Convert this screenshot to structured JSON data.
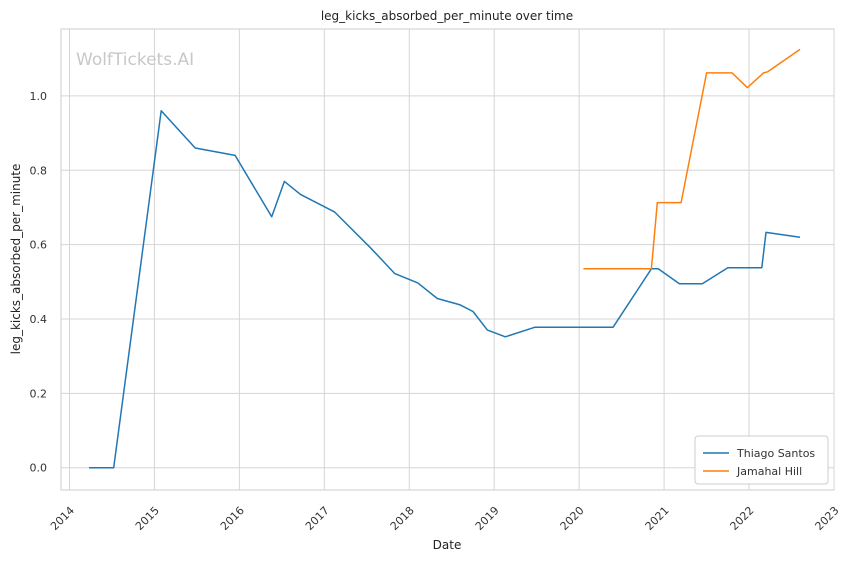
{
  "chart_data": {
    "type": "line",
    "title": "leg_kicks_absorbed_per_minute over time",
    "xlabel": "Date",
    "ylabel": "leg_kicks_absorbed_per_minute",
    "watermark": "WolfTickets.AI",
    "xlim": [
      2013.9,
      2023.0
    ],
    "ylim": [
      -0.06,
      1.18
    ],
    "x_ticks": [
      2014,
      2015,
      2016,
      2017,
      2018,
      2019,
      2020,
      2021,
      2022,
      2023
    ],
    "x_tick_labels": [
      "2014",
      "2015",
      "2016",
      "2017",
      "2018",
      "2019",
      "2020",
      "2021",
      "2022",
      "2023"
    ],
    "y_ticks": [
      0.0,
      0.2,
      0.4,
      0.6,
      0.8,
      1.0
    ],
    "y_tick_labels": [
      "0.0",
      "0.2",
      "0.4",
      "0.6",
      "0.8",
      "1.0"
    ],
    "grid": true,
    "legend_position": "bottom-right",
    "series": [
      {
        "name": "Thiago Santos",
        "color": "#1f77b4",
        "points": [
          [
            2014.23,
            0.0
          ],
          [
            2014.52,
            0.0
          ],
          [
            2015.08,
            0.96
          ],
          [
            2015.48,
            0.86
          ],
          [
            2015.95,
            0.84
          ],
          [
            2016.38,
            0.675
          ],
          [
            2016.53,
            0.77
          ],
          [
            2016.72,
            0.735
          ],
          [
            2017.12,
            0.688
          ],
          [
            2017.55,
            0.59
          ],
          [
            2017.83,
            0.522
          ],
          [
            2018.1,
            0.497
          ],
          [
            2018.33,
            0.455
          ],
          [
            2018.6,
            0.438
          ],
          [
            2018.75,
            0.42
          ],
          [
            2018.92,
            0.37
          ],
          [
            2019.13,
            0.352
          ],
          [
            2019.48,
            0.378
          ],
          [
            2020.05,
            0.378
          ],
          [
            2020.4,
            0.378
          ],
          [
            2020.85,
            0.535
          ],
          [
            2020.93,
            0.535
          ],
          [
            2021.18,
            0.495
          ],
          [
            2021.45,
            0.495
          ],
          [
            2021.75,
            0.538
          ],
          [
            2022.15,
            0.538
          ],
          [
            2022.2,
            0.633
          ],
          [
            2022.6,
            0.62
          ]
        ]
      },
      {
        "name": "Jamahal Hill",
        "color": "#ff7f0e",
        "points": [
          [
            2020.05,
            0.535
          ],
          [
            2020.85,
            0.535
          ],
          [
            2020.92,
            0.713
          ],
          [
            2021.2,
            0.713
          ],
          [
            2021.5,
            1.062
          ],
          [
            2021.8,
            1.062
          ],
          [
            2021.98,
            1.022
          ],
          [
            2022.17,
            1.062
          ],
          [
            2022.22,
            1.065
          ],
          [
            2022.6,
            1.125
          ]
        ]
      }
    ]
  }
}
